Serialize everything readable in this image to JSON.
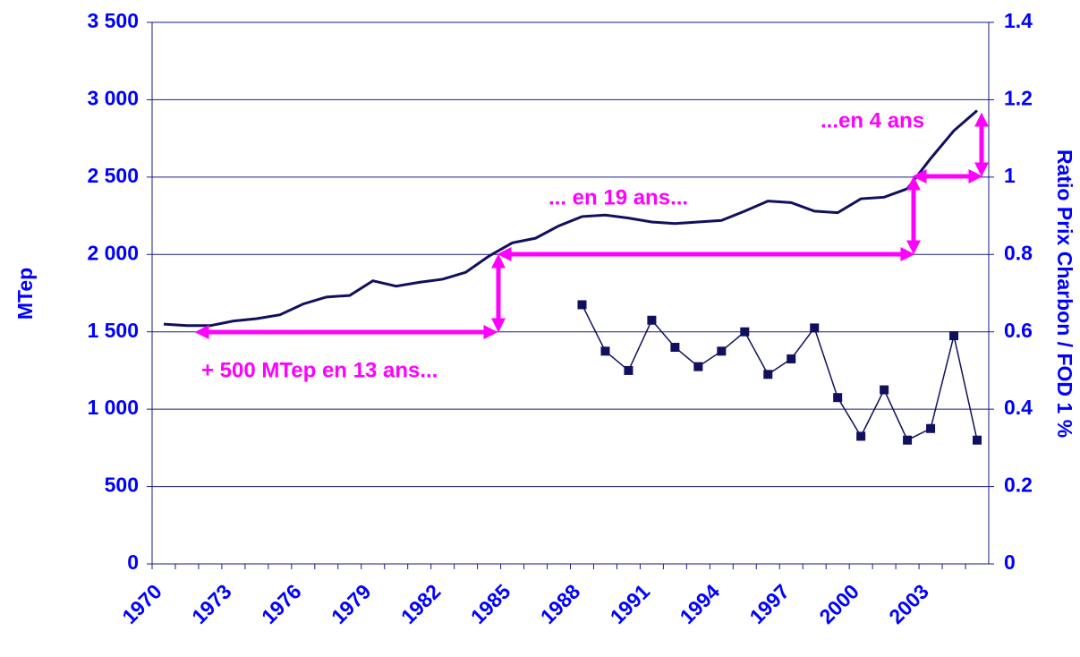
{
  "chart_data": {
    "type": "line",
    "y_label": "MTep",
    "y2_label": "Ratio Prix Charbon / FOD 1 %",
    "categories": [
      "1970",
      null,
      null,
      "1973",
      null,
      null,
      "1976",
      null,
      null,
      "1979",
      null,
      null,
      "1982",
      null,
      null,
      "1985",
      null,
      null,
      "1988",
      null,
      null,
      "1991",
      null,
      null,
      "1994",
      null,
      null,
      "1997",
      null,
      null,
      "2000",
      null,
      null,
      "2003",
      null,
      null
    ],
    "series": [
      {
        "color": "#10105e",
        "values": [
          1550,
          1540,
          1540,
          1570,
          1585,
          1610,
          1680,
          1725,
          1735,
          1830,
          1795,
          1820,
          1840,
          1885,
          1990,
          2075,
          2105,
          2185,
          2245,
          2255,
          2235,
          2210,
          2200,
          2210,
          2220,
          2280,
          2345,
          2335,
          2280,
          2270,
          2360,
          2370,
          2425,
          2620,
          2800,
          2930
        ]
      },
      {
        "color": "#10105e",
        "axis": "y2",
        "marker": "square",
        "values": [
          null,
          null,
          null,
          null,
          null,
          null,
          null,
          null,
          null,
          null,
          null,
          null,
          null,
          null,
          null,
          null,
          null,
          null,
          0.67,
          0.55,
          0.5,
          0.63,
          0.56,
          0.51,
          0.55,
          0.6,
          0.49,
          0.53,
          0.61,
          0.43,
          0.33,
          0.45,
          0.32,
          0.35,
          0.59,
          0.32
        ]
      }
    ],
    "ylim": [
      0,
      3500
    ],
    "yticks": [
      0,
      500,
      {
        "value": 1000,
        "label": "1 000"
      },
      {
        "value": 1500,
        "label": "1 500"
      },
      {
        "value": 2000,
        "label": "2 000"
      },
      {
        "value": 2500,
        "label": "2 500"
      },
      {
        "value": 3000,
        "label": "3 000"
      },
      {
        "value": 3500,
        "label": "3 500"
      }
    ],
    "y2lim": [
      0,
      1.4
    ],
    "y2ticks": [
      0,
      0.2,
      0.4,
      0.6,
      0.8,
      1,
      1.2,
      1.4
    ],
    "grid": true,
    "annotations": [
      "+ 500 MTep en 13 ans...",
      "... en 19 ans...",
      "...en 4 ans"
    ]
  }
}
